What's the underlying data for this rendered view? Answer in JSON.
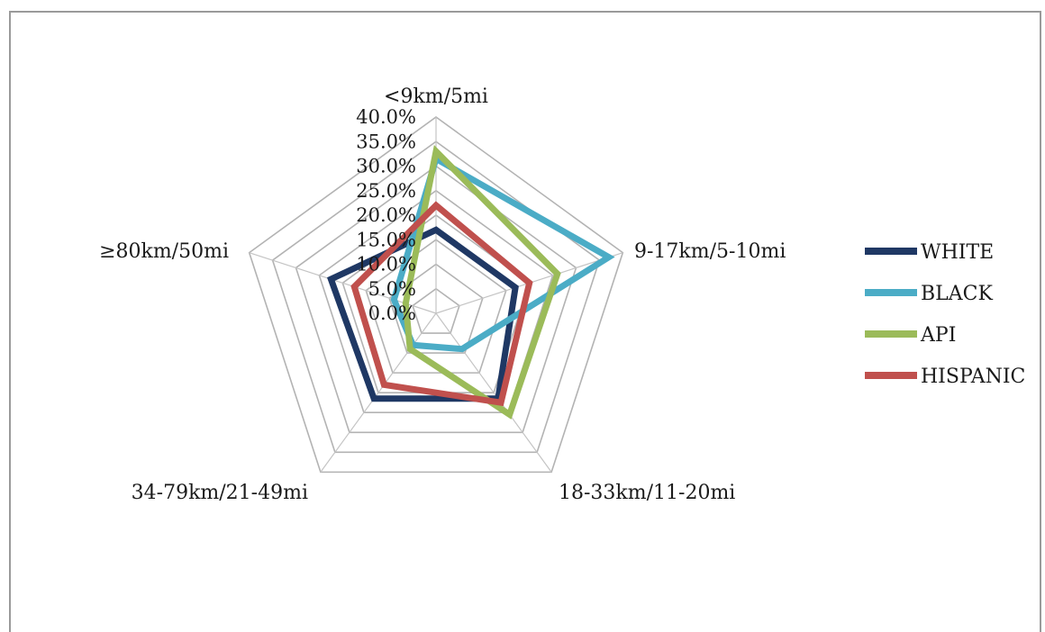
{
  "chart_data": {
    "type": "radar",
    "categories": [
      "<9km/5mi",
      "9-17km/5-10mi",
      "18-33km/11-20mi",
      "34-79km/21-49mi",
      "≥80km/50mi"
    ],
    "series": [
      {
        "name": "WHITE",
        "color": "#1f3864",
        "values": [
          17.0,
          17.0,
          21.5,
          21.5,
          22.5
        ]
      },
      {
        "name": "BLACK",
        "color": "#4bacc6",
        "values": [
          31.5,
          37.0,
          9.0,
          8.0,
          9.0
        ]
      },
      {
        "name": "API",
        "color": "#9bbb59",
        "values": [
          33.0,
          26.0,
          25.5,
          9.0,
          6.5
        ]
      },
      {
        "name": "HISPANIC",
        "color": "#c0504d",
        "values": [
          22.0,
          20.0,
          22.5,
          18.0,
          17.5
        ]
      }
    ],
    "rlim": [
      0,
      40
    ],
    "ticks": [
      "0.0%",
      "5.0%",
      "10.0%",
      "15.0%",
      "20.0%",
      "25.0%",
      "30.0%",
      "35.0%",
      "40.0%"
    ],
    "grid": true,
    "legend_position": "right"
  }
}
